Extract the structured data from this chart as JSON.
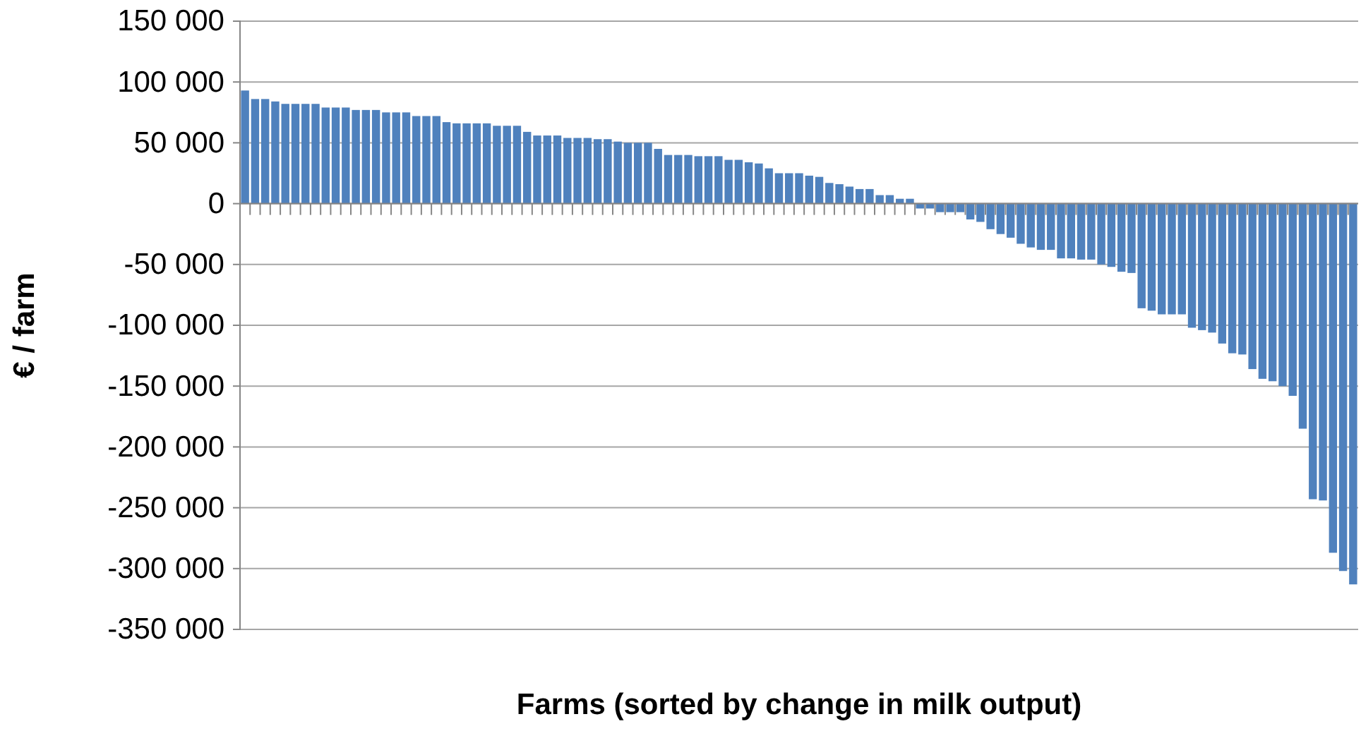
{
  "chart_data": {
    "type": "bar",
    "xlabel": "Farms (sorted by change in milk output)",
    "ylabel": "€ / farm",
    "categories": [
      null,
      null,
      null,
      null,
      null,
      null,
      null,
      null,
      null,
      null,
      null,
      null,
      null,
      null,
      null,
      null,
      null,
      null,
      null,
      null,
      null,
      null,
      null,
      null,
      null,
      null,
      null,
      null,
      null,
      null,
      null,
      null,
      null,
      null,
      null,
      null,
      null,
      null,
      null,
      null,
      null,
      null,
      null,
      null,
      null,
      null,
      null,
      null,
      null,
      null,
      null,
      null,
      null,
      null,
      null,
      null,
      null,
      null,
      null,
      null,
      null,
      null,
      null,
      null,
      null,
      null,
      null,
      null,
      null,
      null,
      null,
      null,
      null,
      null,
      null,
      null,
      null,
      null,
      null,
      null,
      null,
      null,
      null,
      null,
      null,
      null,
      null,
      null,
      null,
      null,
      null,
      null,
      null,
      null,
      null,
      null,
      null,
      null,
      null,
      null,
      null,
      null,
      null,
      null,
      null,
      null,
      null,
      null,
      null,
      null,
      null
    ],
    "values": [
      93000,
      86000,
      86000,
      84000,
      82000,
      82000,
      82000,
      82000,
      79000,
      79000,
      79000,
      77000,
      77000,
      77000,
      75000,
      75000,
      75000,
      72000,
      72000,
      72000,
      67000,
      66000,
      66000,
      66000,
      66000,
      64000,
      64000,
      64000,
      59000,
      56000,
      56000,
      56000,
      54000,
      54000,
      54000,
      53000,
      53000,
      51000,
      50000,
      50000,
      50000,
      45000,
      40000,
      40000,
      40000,
      39000,
      39000,
      39000,
      36000,
      36000,
      34000,
      33000,
      29000,
      25000,
      25000,
      25000,
      23000,
      22000,
      17000,
      16000,
      14000,
      12000,
      12000,
      7000,
      7000,
      4000,
      4000,
      -4000,
      -4000,
      -7000,
      -7000,
      -7000,
      -13000,
      -15000,
      -21000,
      -25000,
      -28000,
      -33000,
      -36000,
      -38000,
      -38000,
      -45000,
      -45000,
      -46000,
      -46000,
      -50000,
      -52000,
      -56000,
      -57000,
      -86000,
      -88000,
      -91000,
      -91000,
      -91000,
      -102000,
      -104000,
      -106000,
      -115000,
      -123000,
      -124000,
      -136000,
      -144000,
      -146000,
      -150000,
      -158000,
      -185000,
      -243000,
      -244000,
      -287000,
      -302000,
      -313000
    ],
    "color": "#4f81bd",
    "ylim": [
      -350000,
      150000
    ],
    "yticks": [
      {
        "value": -350000,
        "label": "-350 000"
      },
      {
        "value": -300000,
        "label": "-300 000"
      },
      {
        "value": -250000,
        "label": "-250 000"
      },
      {
        "value": -200000,
        "label": "-200 000"
      },
      {
        "value": -150000,
        "label": "-150 000"
      },
      {
        "value": -100000,
        "label": "-100 000"
      },
      {
        "value": -50000,
        "label": "-50 000"
      },
      {
        "value": 0,
        "label": "0"
      },
      {
        "value": 50000,
        "label": "50 000"
      },
      {
        "value": 100000,
        "label": "100 000"
      },
      {
        "value": 150000,
        "label": "150 000"
      }
    ],
    "grid": "y"
  }
}
